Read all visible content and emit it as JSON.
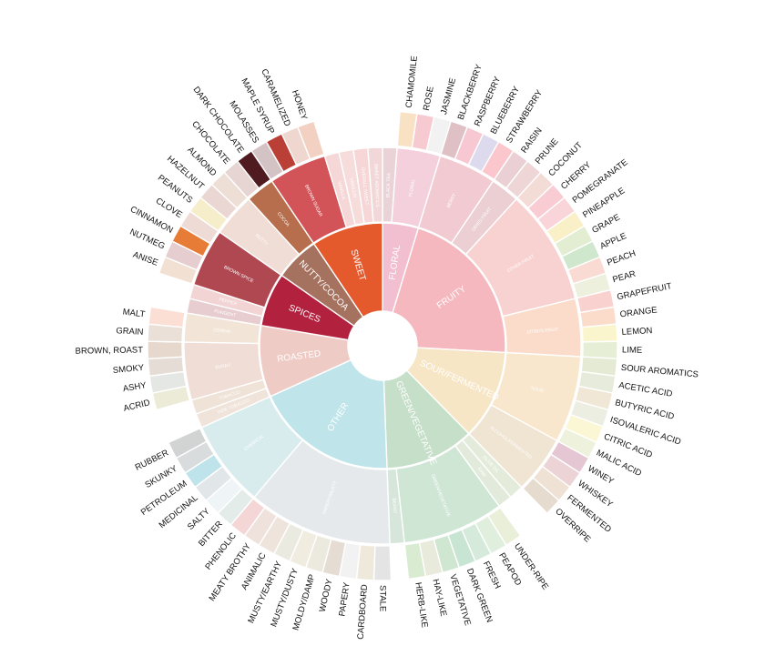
{
  "wheel": {
    "title": "",
    "segments": [
      {
        "name": "FLORAL",
        "color": "#f1bfd0",
        "children": [
          {
            "name": "BLACK TEA",
            "color": "#e9d3d6",
            "children": []
          },
          {
            "name": "FLORAL",
            "color": "#f4d0dc",
            "children": [
              {
                "name": "CHAMOMILE",
                "color": "#f9e2c4"
              },
              {
                "name": "ROSE",
                "color": "#f7c9d0"
              },
              {
                "name": "JASMINE",
                "color": "#f2f2f2"
              }
            ]
          }
        ]
      },
      {
        "name": "FRUITY",
        "color": "#f5b8bf",
        "children": [
          {
            "name": "BERRY",
            "color": "#f2cbd2",
            "children": [
              {
                "name": "BLACKBERRY",
                "color": "#dfc0c5"
              },
              {
                "name": "RASPBERRY",
                "color": "#f7c8d1"
              },
              {
                "name": "BLUEBERRY",
                "color": "#dcdaec"
              },
              {
                "name": "STRAWBERRY",
                "color": "#fbc6cc"
              }
            ]
          },
          {
            "name": "DRIED FRUIT",
            "color": "#ebcfd2",
            "children": [
              {
                "name": "RAISIN",
                "color": "#ead0d4"
              },
              {
                "name": "PRUNE",
                "color": "#eed5d6"
              }
            ]
          },
          {
            "name": "OTHER FRUIT",
            "color": "#f8d2d1",
            "children": [
              {
                "name": "COCONUT",
                "color": "#f4dcd6"
              },
              {
                "name": "CHERRY",
                "color": "#f9cbd2"
              },
              {
                "name": "POMEGRANATE",
                "color": "#f9d5da"
              },
              {
                "name": "PINEAPPLE",
                "color": "#faf0c8"
              },
              {
                "name": "GRAPE",
                "color": "#e2edd2"
              },
              {
                "name": "APPLE",
                "color": "#cfe8cd"
              },
              {
                "name": "PEACH",
                "color": "#f9dbd3"
              },
              {
                "name": "PEAR",
                "color": "#eef0de"
              }
            ]
          },
          {
            "name": "CITRUS FRUIT",
            "color": "#fbdccb",
            "children": [
              {
                "name": "GRAPEFRUIT",
                "color": "#f9d2cf"
              },
              {
                "name": "ORANGE",
                "color": "#fbdccb"
              },
              {
                "name": "LEMON",
                "color": "#fbf5cd"
              },
              {
                "name": "LIME",
                "color": "#e6efd6"
              }
            ]
          }
        ]
      },
      {
        "name": "SOUR/FERMENTED",
        "color": "#f7e6c6",
        "children": [
          {
            "name": "SOUR",
            "color": "#f8e7cc",
            "children": [
              {
                "name": "SOUR AROMATICS",
                "color": "#e4ead3"
              },
              {
                "name": "ACETIC ACID",
                "color": "#e7ebdc"
              },
              {
                "name": "BUTYRIC ACID",
                "color": "#f0e7d6"
              },
              {
                "name": "ISOVALERIC ACID",
                "color": "#ebeee0"
              },
              {
                "name": "CITRIC ACID",
                "color": "#fbf7d4"
              },
              {
                "name": "MALIC ACID",
                "color": "#eef2dc"
              }
            ]
          },
          {
            "name": "ALCOHOL/FERMENTED",
            "color": "#f0e4d2",
            "children": [
              {
                "name": "WINEY",
                "color": "#e4c7d3"
              },
              {
                "name": "WHISKEY",
                "color": "#ecd3d6"
              },
              {
                "name": "FERMENTED",
                "color": "#efe2d5"
              },
              {
                "name": "OVERRIPE",
                "color": "#e6dbcf"
              }
            ]
          }
        ]
      },
      {
        "name": "GREEN/VEGETATIVE",
        "color": "#c5dfc9",
        "children": [
          {
            "name": "OLIVE OIL",
            "color": "#e3ecda",
            "children": []
          },
          {
            "name": "RAW",
            "color": "#e2ebdb",
            "children": []
          },
          {
            "name": "GREEN/VEGETATIVE",
            "color": "#cfe6d5",
            "children": [
              {
                "name": "UNDER-RIPE",
                "color": "#e9efd9"
              },
              {
                "name": "PEAPOD",
                "color": "#dfeedd"
              },
              {
                "name": "FRESH",
                "color": "#d6eadc"
              },
              {
                "name": "DARK GREEN",
                "color": "#c8e4d2"
              },
              {
                "name": "VEGETATIVE",
                "color": "#cfe6d0"
              },
              {
                "name": "HAY-LIKE",
                "color": "#e8eadb"
              },
              {
                "name": "HERB-LIKE",
                "color": "#d9ecd2"
              }
            ]
          },
          {
            "name": "BEANY",
            "color": "#d6e6da",
            "children": []
          }
        ]
      },
      {
        "name": "OTHER",
        "color": "#bfe5ea",
        "children": [
          {
            "name": "PAPERY/MUSTY",
            "color": "#e5e9eb",
            "children": [
              {
                "name": "STALE",
                "color": "#e4e4e4"
              },
              {
                "name": "CARDBOARD",
                "color": "#efe9dc"
              },
              {
                "name": "PAPERY",
                "color": "#f2f2f2"
              },
              {
                "name": "WOODY",
                "color": "#e5ddd3"
              },
              {
                "name": "MOLDY/DAMP",
                "color": "#ece9df"
              },
              {
                "name": "MUSTY/DUSTY",
                "color": "#f0ecdf"
              },
              {
                "name": "MUSTY/EARTHY",
                "color": "#eaeae0"
              },
              {
                "name": "ANIMALIC",
                "color": "#efe4dc"
              },
              {
                "name": "MEATY BROTHY",
                "color": "#efe2dc"
              },
              {
                "name": "PHENOLIC",
                "color": "#f5d6d6"
              }
            ]
          },
          {
            "name": "CHEMICAL",
            "color": "#d8ecee",
            "children": [
              {
                "name": "BITTER",
                "color": "#e3ece8"
              },
              {
                "name": "SALTY",
                "color": "#eff5f6"
              },
              {
                "name": "MEDICINAL",
                "color": "#e1e7e9"
              },
              {
                "name": "PETROLEUM",
                "color": "#bfe3ea"
              },
              {
                "name": "SKUNKY",
                "color": "#d9dcdc"
              },
              {
                "name": "RUBBER",
                "color": "#d2d4d3"
              }
            ]
          }
        ]
      },
      {
        "name": "ROASTED",
        "color": "#efcbc6",
        "children": [
          {
            "name": "PIPE TOBACCO",
            "color": "#f0e3d9",
            "children": []
          },
          {
            "name": "TOBACCO",
            "color": "#efe2d7",
            "children": []
          },
          {
            "name": "BURNT",
            "color": "#f0ddd6",
            "children": [
              {
                "name": "ACRID",
                "color": "#ecebd8"
              },
              {
                "name": "ASHY",
                "color": "#e4e7e3"
              },
              {
                "name": "SMOKY",
                "color": "#e6dcd6"
              },
              {
                "name": "BROWN, ROAST",
                "color": "#e6d8cd"
              }
            ]
          },
          {
            "name": "CEREAL",
            "color": "#f2e5d7",
            "children": [
              {
                "name": "GRAIN",
                "color": "#ebe0d8"
              },
              {
                "name": "MALT",
                "color": "#fbdfd4"
              }
            ]
          }
        ]
      },
      {
        "name": "SPICES",
        "color": "#b2213e",
        "children": [
          {
            "name": "PUNGENT",
            "color": "#e7cdd0",
            "children": []
          },
          {
            "name": "PEPPER",
            "color": "#f1d4d3",
            "children": []
          },
          {
            "name": "BROWN SPICE",
            "color": "#b04852",
            "children": [
              {
                "name": "ANISE",
                "color": "#f2e0d3"
              },
              {
                "name": "NUTMEG",
                "color": "#e5cdd0"
              },
              {
                "name": "CINNAMON",
                "color": "#e77c36"
              },
              {
                "name": "CLOVE",
                "color": "#eedbd6"
              }
            ]
          }
        ]
      },
      {
        "name": "NUTTY/COCOA",
        "color": "#a5725f",
        "children": [
          {
            "name": "NUTTY",
            "color": "#f0ddd6",
            "children": [
              {
                "name": "PEANUTS",
                "color": "#f6edca"
              },
              {
                "name": "HAZELNUT",
                "color": "#ead6d2"
              },
              {
                "name": "ALMOND",
                "color": "#eedfd6"
              }
            ]
          },
          {
            "name": "COCOA",
            "color": "#b66e4c",
            "children": [
              {
                "name": "CHOCOLATE",
                "color": "#e6d5d2"
              },
              {
                "name": "DARK CHOCOLATE",
                "color": "#4f1a20"
              }
            ]
          }
        ]
      },
      {
        "name": "SWEET",
        "color": "#e45a2c",
        "children": [
          {
            "name": "BROWN SUGAR",
            "color": "#d35458",
            "children": [
              {
                "name": "MOLASSES",
                "color": "#d4c3c5"
              },
              {
                "name": "MAPLE SYRUP",
                "color": "#ba3f36"
              },
              {
                "name": "CARAMELIZED",
                "color": "#efd6cf"
              },
              {
                "name": "HONEY",
                "color": "#f3d1c2"
              }
            ]
          },
          {
            "name": "VANILLA",
            "color": "#f5d7d7",
            "children": []
          },
          {
            "name": "VANILLIN",
            "color": "#f7dcdc",
            "children": []
          },
          {
            "name": "OVERALL SWEET",
            "color": "#f6d6d6",
            "children": []
          },
          {
            "name": "SWEET AROMATICS",
            "color": "#f2d7d8",
            "children": []
          }
        ]
      }
    ]
  }
}
